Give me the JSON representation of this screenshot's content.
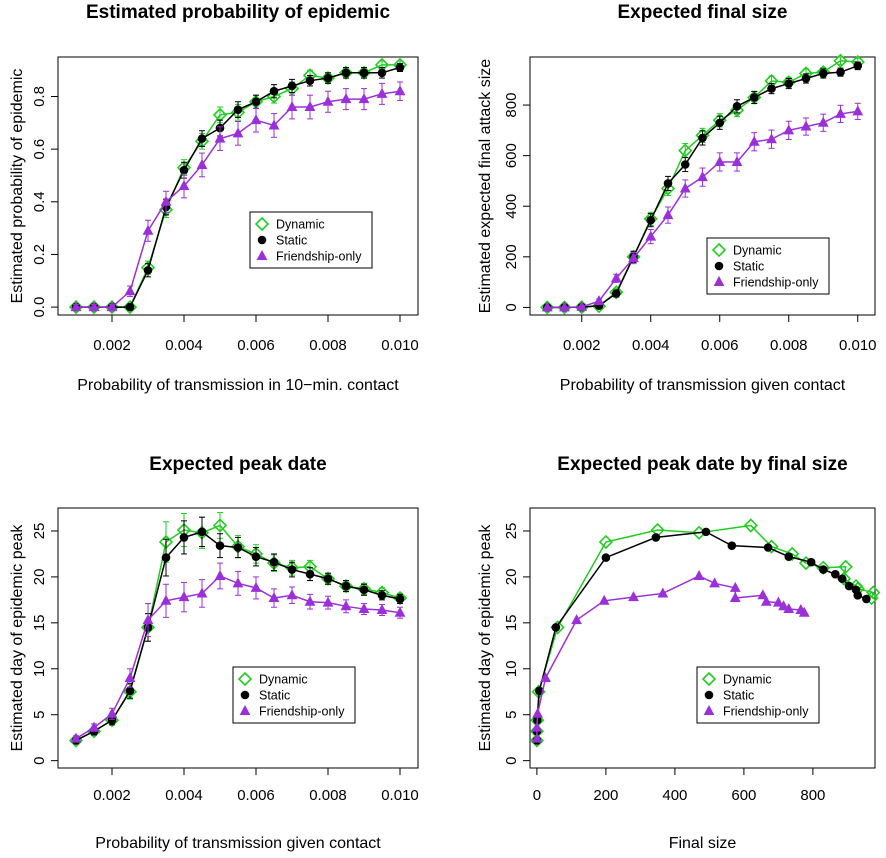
{
  "colors": {
    "dynamic": "#22cc22",
    "static": "#000000",
    "friendship": "#9b30d9"
  },
  "legend_labels": [
    "Dynamic",
    "Static",
    "Friendship-only"
  ],
  "chart_data": [
    {
      "type": "line",
      "title": "Estimated probability of epidemic",
      "xlabel": "Probability of transmission in 10−min. contact",
      "ylabel": "Estimated probability of epidemic",
      "xlim": [
        0.0005,
        0.0105
      ],
      "ylim": [
        -0.03,
        0.95
      ],
      "xticks": [
        "0.002",
        "0.004",
        "0.006",
        "0.008",
        "0.010"
      ],
      "yticks": [
        "0.0",
        "0.2",
        "0.4",
        "0.6",
        "0.8"
      ],
      "legend_position": "center-right",
      "x": [
        0.001,
        0.0015,
        0.002,
        0.0025,
        0.003,
        0.0035,
        0.004,
        0.0045,
        0.005,
        0.0055,
        0.006,
        0.0065,
        0.007,
        0.0075,
        0.008,
        0.0085,
        0.009,
        0.0095,
        0.01
      ],
      "series": [
        {
          "name": "Dynamic",
          "marker": "diamond",
          "values": [
            0,
            0,
            0,
            0,
            0.15,
            0.37,
            0.53,
            0.63,
            0.73,
            0.74,
            0.78,
            0.8,
            0.83,
            0.88,
            0.87,
            0.89,
            0.89,
            0.92,
            0.92
          ],
          "err": [
            0.01,
            0.01,
            0.01,
            0.01,
            0.025,
            0.03,
            0.03,
            0.03,
            0.03,
            0.03,
            0.025,
            0.025,
            0.025,
            0.02,
            0.02,
            0.02,
            0.02,
            0.015,
            0.015
          ]
        },
        {
          "name": "Static",
          "marker": "circle",
          "values": [
            0,
            0,
            0,
            0,
            0.14,
            0.38,
            0.52,
            0.64,
            0.68,
            0.75,
            0.78,
            0.82,
            0.84,
            0.86,
            0.87,
            0.89,
            0.89,
            0.89,
            0.91
          ],
          "err": [
            0.01,
            0.01,
            0.01,
            0.01,
            0.025,
            0.03,
            0.03,
            0.03,
            0.03,
            0.03,
            0.025,
            0.025,
            0.025,
            0.02,
            0.02,
            0.02,
            0.02,
            0.02,
            0.015
          ]
        },
        {
          "name": "Friendship-only",
          "marker": "triangle",
          "values": [
            0,
            0,
            0,
            0.06,
            0.29,
            0.4,
            0.46,
            0.54,
            0.64,
            0.66,
            0.71,
            0.69,
            0.76,
            0.76,
            0.78,
            0.79,
            0.79,
            0.81,
            0.82
          ],
          "err": [
            0.01,
            0.01,
            0.01,
            0.02,
            0.04,
            0.04,
            0.045,
            0.045,
            0.045,
            0.045,
            0.045,
            0.045,
            0.045,
            0.045,
            0.04,
            0.04,
            0.04,
            0.04,
            0.035
          ]
        }
      ]
    },
    {
      "type": "line",
      "title": "Expected final size",
      "xlabel": "Probability of transmission given contact",
      "ylabel": "Estimated expected final attack size",
      "xlim": [
        0.0005,
        0.0105
      ],
      "ylim": [
        -30,
        990
      ],
      "xticks": [
        "0.002",
        "0.004",
        "0.006",
        "0.008",
        "0.010"
      ],
      "yticks": [
        "0",
        "200",
        "400",
        "600",
        "800"
      ],
      "legend_position": "center-right",
      "x": [
        0.001,
        0.0015,
        0.002,
        0.0025,
        0.003,
        0.0035,
        0.004,
        0.0045,
        0.005,
        0.0055,
        0.006,
        0.0065,
        0.007,
        0.0075,
        0.008,
        0.0085,
        0.009,
        0.0095,
        0.01
      ],
      "series": [
        {
          "name": "Dynamic",
          "marker": "diamond",
          "values": [
            0,
            0,
            1,
            5,
            60,
            200,
            350,
            470,
            620,
            680,
            740,
            780,
            830,
            895,
            890,
            925,
            930,
            975,
            970
          ],
          "err": [
            2,
            2,
            3,
            6,
            14,
            22,
            26,
            28,
            28,
            28,
            26,
            26,
            24,
            20,
            20,
            18,
            18,
            15,
            15
          ]
        },
        {
          "name": "Static",
          "marker": "circle",
          "values": [
            0,
            0,
            1,
            7,
            55,
            200,
            345,
            490,
            565,
            670,
            730,
            795,
            830,
            865,
            885,
            905,
            925,
            930,
            955
          ],
          "err": [
            2,
            2,
            3,
            6,
            14,
            22,
            26,
            28,
            28,
            28,
            26,
            26,
            24,
            20,
            20,
            18,
            18,
            16,
            15
          ]
        },
        {
          "name": "Friendship-only",
          "marker": "triangle",
          "values": [
            0,
            0,
            2,
            25,
            115,
            195,
            280,
            365,
            470,
            515,
            575,
            575,
            655,
            665,
            700,
            715,
            730,
            765,
            775
          ],
          "err": [
            2,
            2,
            4,
            8,
            16,
            22,
            28,
            32,
            34,
            36,
            36,
            36,
            36,
            36,
            36,
            34,
            34,
            34,
            32
          ]
        }
      ]
    },
    {
      "type": "line",
      "title": "Expected peak date",
      "xlabel": "Probability of transmission given contact",
      "ylabel": "Estimated day of epidemic peak",
      "xlim": [
        0.0005,
        0.0105
      ],
      "ylim": [
        -0.8,
        27.5
      ],
      "xticks": [
        "0.002",
        "0.004",
        "0.006",
        "0.008",
        "0.010"
      ],
      "yticks": [
        "0",
        "5",
        "10",
        "15",
        "20",
        "25"
      ],
      "legend_position": "center-right",
      "x": [
        0.001,
        0.0015,
        0.002,
        0.0025,
        0.003,
        0.0035,
        0.004,
        0.0045,
        0.005,
        0.0055,
        0.006,
        0.0065,
        0.007,
        0.0075,
        0.008,
        0.0085,
        0.009,
        0.0095,
        0.01
      ],
      "series": [
        {
          "name": "Dynamic",
          "marker": "diamond",
          "values": [
            2.2,
            3.2,
            4.4,
            7.5,
            14.5,
            23.8,
            25.1,
            24.8,
            25.6,
            23.3,
            22.5,
            21.5,
            21.0,
            21.1,
            19.8,
            19.0,
            18.7,
            18.3,
            17.7
          ],
          "err": [
            0.3,
            0.4,
            0.5,
            0.8,
            1.5,
            2.2,
            1.8,
            1.7,
            1.4,
            1.2,
            1.0,
            0.9,
            0.8,
            0.7,
            0.6,
            0.6,
            0.6,
            0.5,
            0.5
          ]
        },
        {
          "name": "Static",
          "marker": "circle",
          "values": [
            2.2,
            3.2,
            4.4,
            7.6,
            14.5,
            22.1,
            24.3,
            24.9,
            23.4,
            23.2,
            22.2,
            21.6,
            20.8,
            20.3,
            19.8,
            19.0,
            18.6,
            18.0,
            17.6
          ],
          "err": [
            0.3,
            0.4,
            0.5,
            0.8,
            1.5,
            2.0,
            1.8,
            1.6,
            1.3,
            1.1,
            1.0,
            0.9,
            0.8,
            0.7,
            0.6,
            0.6,
            0.6,
            0.5,
            0.5
          ]
        },
        {
          "name": "Friendship-only",
          "marker": "triangle",
          "values": [
            2.4,
            3.6,
            5.1,
            9.0,
            15.3,
            17.4,
            17.8,
            18.2,
            20.1,
            19.3,
            18.8,
            17.7,
            18.0,
            17.3,
            17.2,
            16.8,
            16.5,
            16.4,
            16.1
          ],
          "err": [
            0.3,
            0.4,
            0.6,
            1.0,
            1.8,
            1.8,
            1.6,
            1.5,
            1.4,
            1.3,
            1.2,
            1.0,
            0.9,
            0.8,
            0.7,
            0.7,
            0.6,
            0.6,
            0.6
          ]
        }
      ]
    },
    {
      "type": "line",
      "title": "Expected peak date by final size",
      "xlabel": "Final size",
      "ylabel": "Estimated day of epidemic peak",
      "xlim": [
        -20,
        980
      ],
      "ylim": [
        -0.8,
        27.5
      ],
      "xticks": [
        "0",
        "200",
        "400",
        "600",
        "800"
      ],
      "yticks": [
        "0",
        "5",
        "10",
        "15",
        "20",
        "25"
      ],
      "legend_position": "center-right",
      "series": [
        {
          "name": "Dynamic",
          "marker": "diamond",
          "x": [
            0,
            0,
            1,
            5,
            60,
            200,
            350,
            470,
            620,
            680,
            740,
            780,
            830,
            895,
            890,
            925,
            930,
            975,
            970
          ],
          "values": [
            2.2,
            3.2,
            4.4,
            7.5,
            14.5,
            23.8,
            25.1,
            24.8,
            25.6,
            23.3,
            22.5,
            21.5,
            21.0,
            21.1,
            19.8,
            19.0,
            18.7,
            18.3,
            17.7
          ]
        },
        {
          "name": "Static",
          "marker": "circle",
          "x": [
            0,
            0,
            1,
            7,
            55,
            200,
            345,
            490,
            565,
            670,
            730,
            795,
            830,
            865,
            885,
            905,
            925,
            930,
            955
          ],
          "values": [
            2.2,
            3.2,
            4.4,
            7.6,
            14.5,
            22.1,
            24.3,
            24.9,
            23.4,
            23.2,
            22.2,
            21.6,
            20.8,
            20.3,
            19.8,
            19.0,
            18.6,
            18.0,
            17.6
          ]
        },
        {
          "name": "Friendship-only",
          "marker": "triangle",
          "x": [
            0,
            0,
            2,
            25,
            115,
            195,
            280,
            365,
            470,
            515,
            575,
            575,
            655,
            665,
            700,
            715,
            730,
            765,
            775
          ],
          "values": [
            2.4,
            3.6,
            5.1,
            9.0,
            15.3,
            17.4,
            17.8,
            18.2,
            20.1,
            19.3,
            18.8,
            17.7,
            18.0,
            17.3,
            17.2,
            16.8,
            16.5,
            16.4,
            16.1
          ]
        }
      ]
    }
  ]
}
